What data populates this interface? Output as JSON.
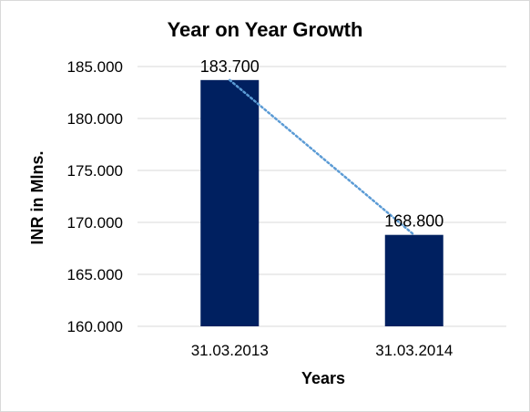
{
  "chart_data": {
    "type": "bar",
    "title": "Year on Year Growth",
    "xlabel": "Years",
    "ylabel": "INR in Mlns.",
    "categories": [
      "31.03.2013",
      "31.03.2014"
    ],
    "values": [
      183.7,
      168.8
    ],
    "data_labels": [
      "183.700",
      "168.800"
    ],
    "ylim": [
      160,
      185
    ],
    "yticks": [
      160,
      165,
      170,
      175,
      180,
      185
    ],
    "ytick_labels": [
      "160.000",
      "165.000",
      "170.000",
      "175.000",
      "180.000",
      "185.000"
    ],
    "grid": true,
    "legend": "none",
    "trendline": "dotted linear",
    "colors": {
      "bar": "#002060",
      "trendline": "#5B9BD5",
      "grid": "#d9d9d9"
    }
  }
}
